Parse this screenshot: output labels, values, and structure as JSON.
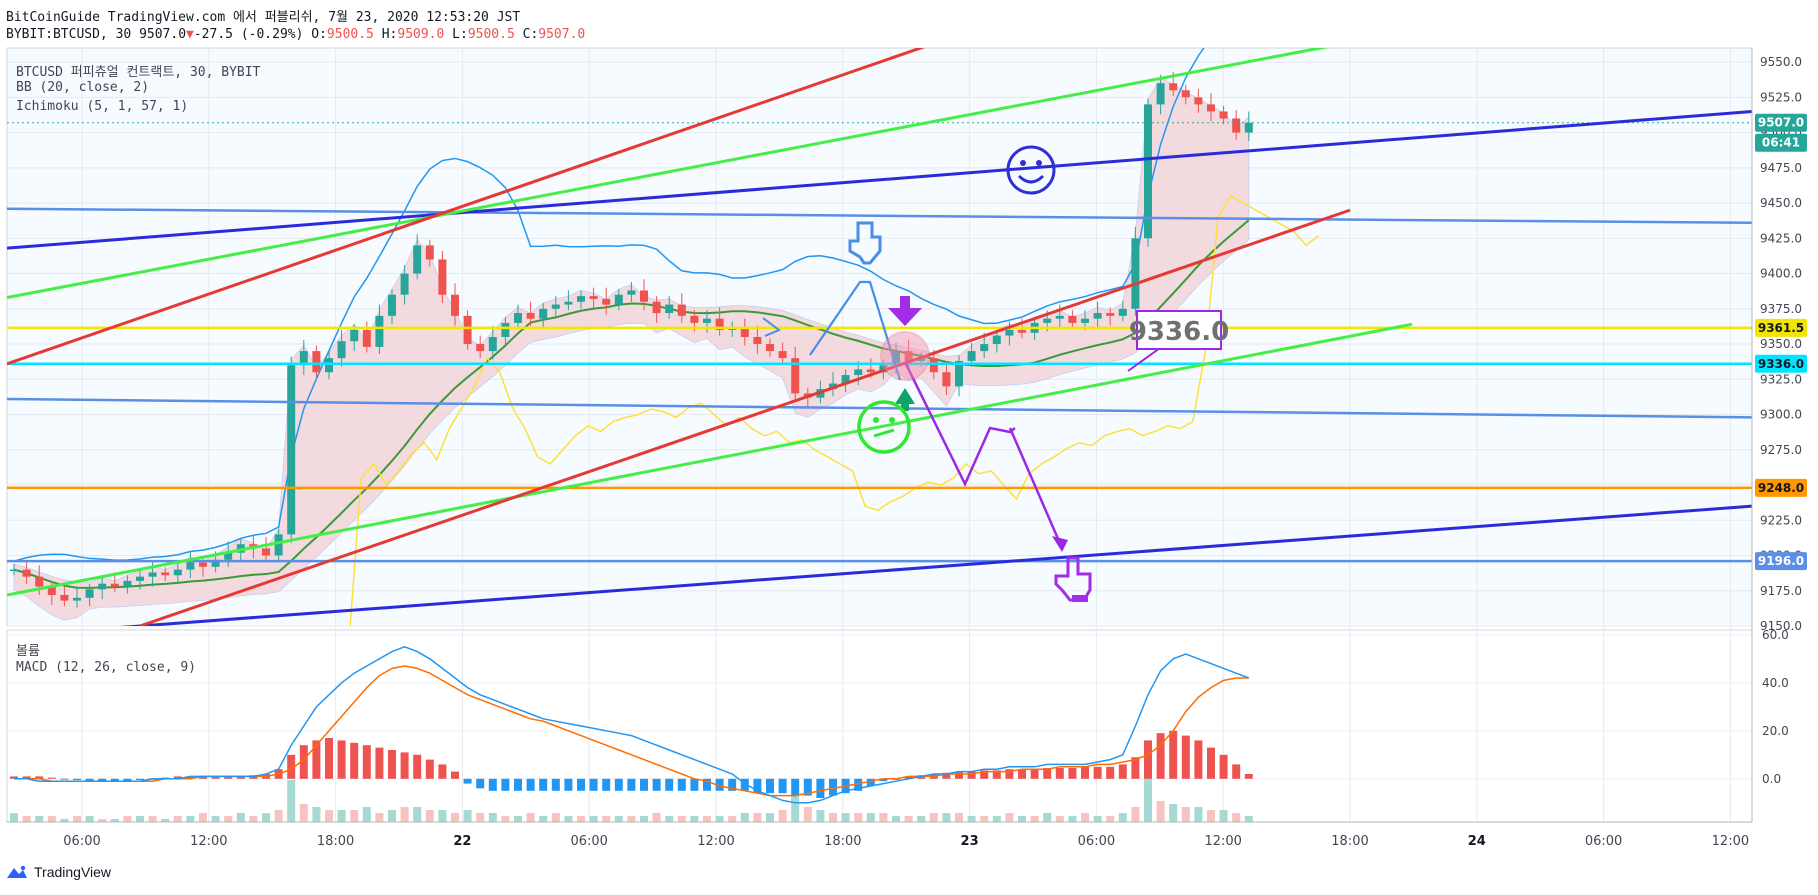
{
  "header": {
    "line1": "BitCoinGuide TradingView.com 에서 퍼블리쉬, 7월 23, 2020 12:53:20 JST",
    "symbol": "BYBIT:BTCUSD, 30",
    "last": "9507.0",
    "change_arrow": "▼",
    "change": "-27.5 (-0.29%)",
    "o_label": "O:",
    "o": "9500.5",
    "h_label": "H:",
    "h": "9509.0",
    "l_label": "L:",
    "l": "9500.5",
    "c_label": "C:",
    "c": "9507.0"
  },
  "legend": {
    "main_title": "BTCUSD 퍼피츄얼 컨트랙트, 30, BYBIT",
    "bb": "BB (20, close, 2)",
    "ichimoku": "Ichimoku (5, 1, 57, 1)",
    "volume": "볼륨",
    "macd": "MACD (12, 26, close, 9)"
  },
  "annotation_label": "9336.0",
  "footer": {
    "brand": "TradingView",
    "logo_icon": "tradingview-logo-icon"
  },
  "icons": [
    "smiley-blue-icon",
    "smiley-green-icon",
    "hand-pointing-down-icon",
    "hand-pointing-down-purple-icon",
    "down-arrow-purple-icon",
    "up-arrow-green-icon"
  ],
  "colors": {
    "up": "#26a69a",
    "down": "#ef5350",
    "bb": "#2196f3",
    "cloud": "#f3d3d6",
    "yellow": "#f2e600",
    "orange": "#ff9800",
    "cyan": "#00e5ff",
    "blue_line": "#5b8ee6",
    "navy": "#2b2bdb",
    "purple": "#9c27e6",
    "green_trend": "#44ee44",
    "red_trend": "#e53935"
  },
  "chart_data": [
    {
      "type": "candlestick",
      "title": "BTCUSD 퍼피츄얼 컨트랙트, 30, BYBIT",
      "x_ticks": [
        "06:00",
        "12:00",
        "18:00",
        "22",
        "06:00",
        "12:00",
        "18:00",
        "23",
        "06:00",
        "12:00",
        "18:00",
        "24",
        "06:00",
        "12:00"
      ],
      "y_ticks": [
        "9550.0",
        "9525.0",
        "9500.0",
        "9475.0",
        "9450.0",
        "9425.0",
        "9400.0",
        "9375.0",
        "9350.0",
        "9325.0",
        "9300.0",
        "9275.0",
        "9250.0",
        "9225.0",
        "9200.0",
        "9175.0",
        "9150.0"
      ],
      "ylim": [
        9150,
        9560
      ],
      "price_labels": [
        {
          "value": "9507.0",
          "color": "#26a69a"
        },
        {
          "value": "06:41",
          "color": "#26a69a"
        },
        {
          "value": "9361.5",
          "color": "#f2e600"
        },
        {
          "value": "9336.0",
          "color": "#00e5ff"
        },
        {
          "value": "9248.0",
          "color": "#ff9800"
        },
        {
          "value": "9196.0",
          "color": "#5b8ee6"
        }
      ],
      "horizontal_levels": [
        9361.5,
        9336.0,
        9248.0,
        9196.0
      ],
      "candles_close": [
        9190,
        9185,
        9178,
        9172,
        9168,
        9170,
        9176,
        9180,
        9178,
        9182,
        9185,
        9188,
        9186,
        9190,
        9195,
        9192,
        9197,
        9202,
        9208,
        9205,
        9200,
        9215,
        9335,
        9345,
        9330,
        9340,
        9352,
        9360,
        9348,
        9370,
        9385,
        9400,
        9420,
        9410,
        9385,
        9370,
        9350,
        9345,
        9355,
        9365,
        9372,
        9368,
        9375,
        9378,
        9380,
        9384,
        9382,
        9378,
        9385,
        9388,
        9380,
        9372,
        9378,
        9370,
        9365,
        9368,
        9360,
        9362,
        9355,
        9350,
        9345,
        9340,
        9315,
        9312,
        9318,
        9322,
        9328,
        9332,
        9330,
        9335,
        9345,
        9338,
        9340,
        9330,
        9320,
        9338,
        9345,
        9350,
        9356,
        9360,
        9358,
        9365,
        9368,
        9370,
        9365,
        9368,
        9372,
        9370,
        9375,
        9425,
        9520,
        9535,
        9530,
        9525,
        9520,
        9515,
        9510,
        9500,
        9507
      ]
    },
    {
      "type": "bar",
      "title": "MACD (12, 26, close, 9)",
      "y_ticks": [
        "60.0",
        "40.0",
        "20.0",
        "0.0"
      ],
      "ylim": [
        -18,
        62
      ],
      "histogram": [
        1,
        1,
        1,
        0.5,
        0,
        -0.5,
        -1,
        -1,
        -1,
        -1,
        -0.5,
        0,
        0.5,
        1,
        1,
        1,
        1,
        1,
        1,
        1.5,
        2,
        4,
        10,
        14,
        16,
        17,
        16,
        15,
        14,
        13,
        12,
        11,
        10,
        8,
        6,
        3,
        -2,
        -4,
        -5,
        -5,
        -5,
        -5,
        -5,
        -5,
        -5,
        -5,
        -5,
        -5,
        -5,
        -5,
        -5,
        -5,
        -5,
        -5,
        -5,
        -5,
        -5,
        -5,
        -5,
        -6,
        -6,
        -6,
        -7,
        -7,
        -8,
        -7,
        -6,
        -5,
        -3,
        -1,
        0,
        1,
        1.5,
        2,
        2.5,
        3,
        3,
        3.5,
        3.5,
        4,
        4,
        4,
        4.5,
        4.5,
        4.5,
        5,
        5,
        5,
        6,
        9,
        16,
        19,
        20,
        18,
        16,
        13,
        10,
        6,
        2
      ],
      "macd_line": [
        0,
        0,
        -1,
        -1,
        -1,
        -1,
        -1,
        -1,
        -1,
        -1,
        -1,
        0,
        0,
        0,
        1,
        1,
        1,
        1,
        1,
        1,
        2,
        4,
        14,
        22,
        30,
        35,
        40,
        44,
        47,
        50,
        53,
        55,
        53,
        50,
        46,
        42,
        38,
        35,
        33,
        31,
        29,
        27,
        25,
        24,
        23,
        22,
        21,
        20,
        19,
        18,
        16,
        14,
        12,
        10,
        8,
        6,
        4,
        2,
        -2,
        -5,
        -7,
        -9,
        -10,
        -10,
        -9,
        -7,
        -5,
        -4,
        -3,
        -2,
        -1,
        0,
        1,
        2,
        2,
        3,
        3,
        4,
        4,
        5,
        5,
        5,
        6,
        6,
        6,
        6,
        7,
        8,
        10,
        22,
        35,
        45,
        50,
        52,
        50,
        48,
        46,
        44,
        42
      ],
      "signal_line": [
        0,
        0,
        0,
        -1,
        -1,
        -1,
        -1,
        -1,
        -1,
        -1,
        -1,
        -1,
        0,
        0,
        0,
        1,
        1,
        1,
        1,
        1,
        1,
        2,
        4,
        8,
        14,
        20,
        26,
        32,
        38,
        43,
        46,
        47,
        46,
        44,
        41,
        38,
        35,
        33,
        31,
        29,
        27,
        25,
        24,
        22,
        20,
        18,
        16,
        14,
        12,
        10,
        8,
        6,
        4,
        2,
        0,
        -1,
        -3,
        -4,
        -5,
        -6,
        -7,
        -7,
        -7,
        -6,
        -5,
        -4,
        -3,
        -2,
        -1,
        0,
        0,
        1,
        1,
        1,
        2,
        2,
        2,
        3,
        3,
        3,
        4,
        4,
        4,
        5,
        5,
        5,
        6,
        6,
        7,
        8,
        10,
        14,
        20,
        28,
        34,
        38,
        41,
        42,
        42
      ],
      "volume": [
        3,
        2,
        2,
        2,
        1,
        2,
        2,
        1,
        1,
        2,
        2,
        2,
        1,
        2,
        2,
        3,
        2,
        2,
        3,
        2,
        3,
        4,
        14,
        6,
        5,
        4,
        4,
        4,
        5,
        3,
        4,
        5,
        5,
        4,
        4,
        3,
        4,
        3,
        3,
        2,
        2,
        3,
        2,
        3,
        2,
        2,
        2,
        2,
        2,
        2,
        2,
        3,
        2,
        2,
        2,
        2,
        2,
        2,
        3,
        3,
        3,
        4,
        9,
        5,
        4,
        3,
        3,
        3,
        3,
        3,
        2,
        2,
        2,
        3,
        3,
        3,
        2,
        2,
        2,
        3,
        2,
        2,
        3,
        2,
        2,
        3,
        2,
        2,
        3,
        5,
        15,
        7,
        6,
        5,
        5,
        4,
        4,
        3,
        2
      ]
    }
  ]
}
